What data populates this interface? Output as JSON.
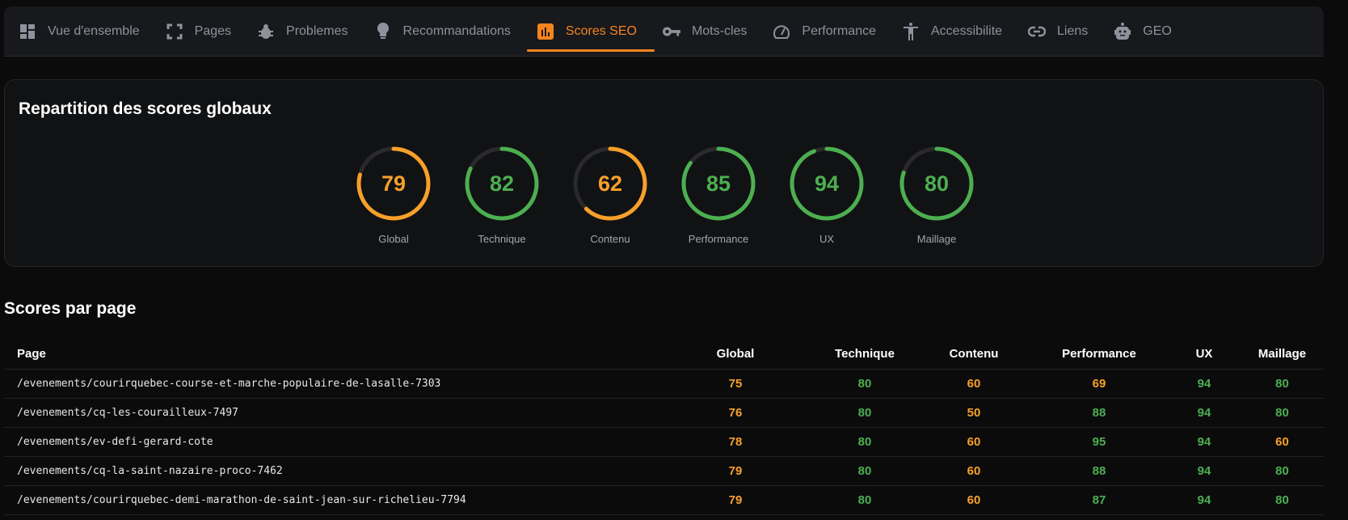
{
  "tabs": [
    {
      "label": "Vue d'ensemble",
      "icon": "dashboard-icon"
    },
    {
      "label": "Pages",
      "icon": "pages-icon"
    },
    {
      "label": "Problemes",
      "icon": "bug-icon"
    },
    {
      "label": "Recommandations",
      "icon": "lightbulb-icon"
    },
    {
      "label": "Scores SEO",
      "icon": "bar-chart-icon",
      "active": true
    },
    {
      "label": "Mots-cles",
      "icon": "key-icon"
    },
    {
      "label": "Performance",
      "icon": "speedometer-icon"
    },
    {
      "label": "Accessibilite",
      "icon": "accessibility-icon"
    },
    {
      "label": "Liens",
      "icon": "link-icon"
    },
    {
      "label": "GEO",
      "icon": "robot-icon"
    }
  ],
  "colors": {
    "accent": "#f5841f",
    "good": "#4caf50",
    "medium": "#f7a02a",
    "track": "#2a2a2c"
  },
  "overview": {
    "title": "Repartition des scores globaux",
    "scores": [
      {
        "label": "Global",
        "value": 79
      },
      {
        "label": "Technique",
        "value": 82
      },
      {
        "label": "Contenu",
        "value": 62
      },
      {
        "label": "Performance",
        "value": 85
      },
      {
        "label": "UX",
        "value": 94
      },
      {
        "label": "Maillage",
        "value": 80
      }
    ]
  },
  "table": {
    "title": "Scores par page",
    "columns": [
      "Page",
      "Global",
      "Technique",
      "Contenu",
      "Performance",
      "UX",
      "Maillage"
    ],
    "rows": [
      [
        "/evenements/courirquebec-course-et-marche-populaire-de-lasalle-7303",
        "75",
        "80",
        "60",
        "69",
        "94",
        "80"
      ],
      [
        "/evenements/cq-les-courailleux-7497",
        "76",
        "80",
        "50",
        "88",
        "94",
        "80"
      ],
      [
        "/evenements/ev-defi-gerard-cote",
        "78",
        "80",
        "60",
        "95",
        "94",
        "60"
      ],
      [
        "/evenements/cq-la-saint-nazaire-proco-7462",
        "79",
        "80",
        "60",
        "88",
        "94",
        "80"
      ],
      [
        "/evenements/courirquebec-demi-marathon-de-saint-jean-sur-richelieu-7794",
        "79",
        "80",
        "60",
        "87",
        "94",
        "80"
      ]
    ]
  }
}
